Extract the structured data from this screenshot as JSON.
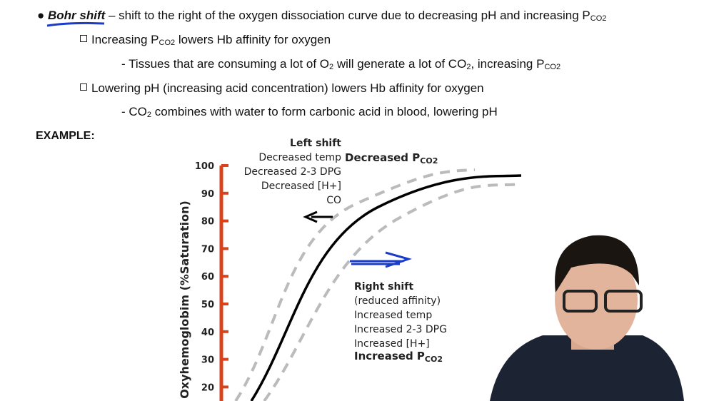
{
  "notes": {
    "lines": [
      [
        "Bohr shift",
        " – shift to the right of the oxygen dissociation curve due to decreasing pH and increasing P",
        "CO2"
      ],
      [
        "Increasing P",
        "CO2",
        " lowers Hb affinity for oxygen"
      ],
      [
        "- Tissues that are consuming a lot of O",
        "2",
        " will generate a lot of CO",
        "2",
        ", increasing P",
        "CO2"
      ],
      [
        "Lowering pH (increasing acid concentration) lowers Hb affinity for oxygen"
      ],
      [
        "- CO",
        "2",
        " combines with water to form carbonic acid in blood, lowering pH"
      ]
    ]
  },
  "example_label": "EXAMPLE:",
  "figure": {
    "y_label": "Oxyhemoglobim (%Saturation)",
    "y_ticks": [
      100,
      90,
      80,
      70,
      60,
      50,
      40,
      30,
      20
    ],
    "left_shift": {
      "title": "Left shift",
      "items": [
        "Decreased temp",
        "Decreased 2-3 DPG",
        "Decreased [H+]",
        "CO"
      ],
      "pco2": [
        "Decreased P",
        "CO2"
      ]
    },
    "right_shift": {
      "title": "Right shift",
      "items": [
        "(reduced affinity)",
        "Increased temp",
        "Increased 2-3 DPG",
        "Increased [H+]"
      ],
      "pco2": [
        "Increased P",
        "CO2"
      ]
    }
  }
}
